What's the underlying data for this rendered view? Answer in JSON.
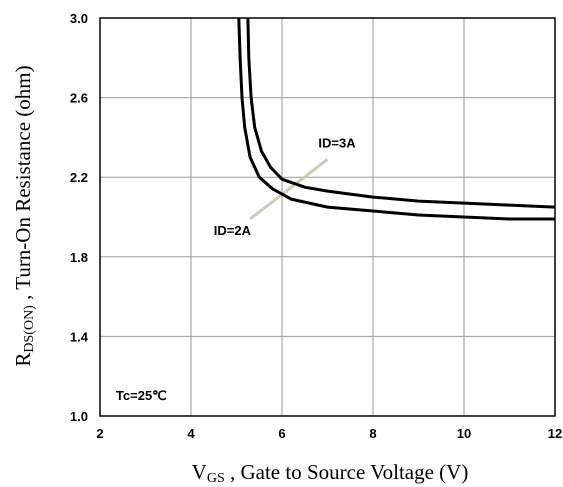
{
  "chart_data": {
    "type": "line",
    "xlabel_main": "V",
    "xlabel_sub": "GS",
    "xlabel_rest": " , Gate to Source Voltage (V)",
    "ylabel_main": "R",
    "ylabel_sub": "DS(ON)",
    "ylabel_rest": " , Turn-On Resistance (ohm)",
    "xlim": [
      2,
      12
    ],
    "ylim": [
      1.0,
      3.0
    ],
    "x_ticks": [
      "2",
      "4",
      "6",
      "8",
      "10",
      "12"
    ],
    "y_ticks": [
      "1.0",
      "1.4",
      "1.8",
      "2.2",
      "2.6",
      "3.0"
    ],
    "grid": true,
    "series": [
      {
        "name": "ID=3A",
        "points": [
          [
            5.25,
            3.0
          ],
          [
            5.27,
            2.8
          ],
          [
            5.32,
            2.6
          ],
          [
            5.4,
            2.45
          ],
          [
            5.55,
            2.33
          ],
          [
            5.75,
            2.25
          ],
          [
            6.0,
            2.19
          ],
          [
            6.5,
            2.15
          ],
          [
            7.0,
            2.13
          ],
          [
            8.0,
            2.1
          ],
          [
            9.0,
            2.08
          ],
          [
            10.0,
            2.07
          ],
          [
            11.0,
            2.06
          ],
          [
            12.0,
            2.05
          ]
        ]
      },
      {
        "name": "ID=2A",
        "points": [
          [
            5.05,
            3.0
          ],
          [
            5.08,
            2.8
          ],
          [
            5.12,
            2.6
          ],
          [
            5.18,
            2.45
          ],
          [
            5.3,
            2.3
          ],
          [
            5.5,
            2.2
          ],
          [
            5.8,
            2.14
          ],
          [
            6.2,
            2.09
          ],
          [
            7.0,
            2.05
          ],
          [
            8.0,
            2.03
          ],
          [
            9.0,
            2.01
          ],
          [
            10.0,
            2.0
          ],
          [
            11.0,
            1.99
          ],
          [
            12.0,
            1.99
          ]
        ]
      }
    ],
    "annotations": [
      {
        "text": "ID=3A",
        "x": 6.8,
        "y": 2.35
      },
      {
        "text": "ID=2A",
        "x": 4.5,
        "y": 1.91
      },
      {
        "text": "Tc=25℃",
        "x": 2.35,
        "y": 1.08
      }
    ]
  }
}
